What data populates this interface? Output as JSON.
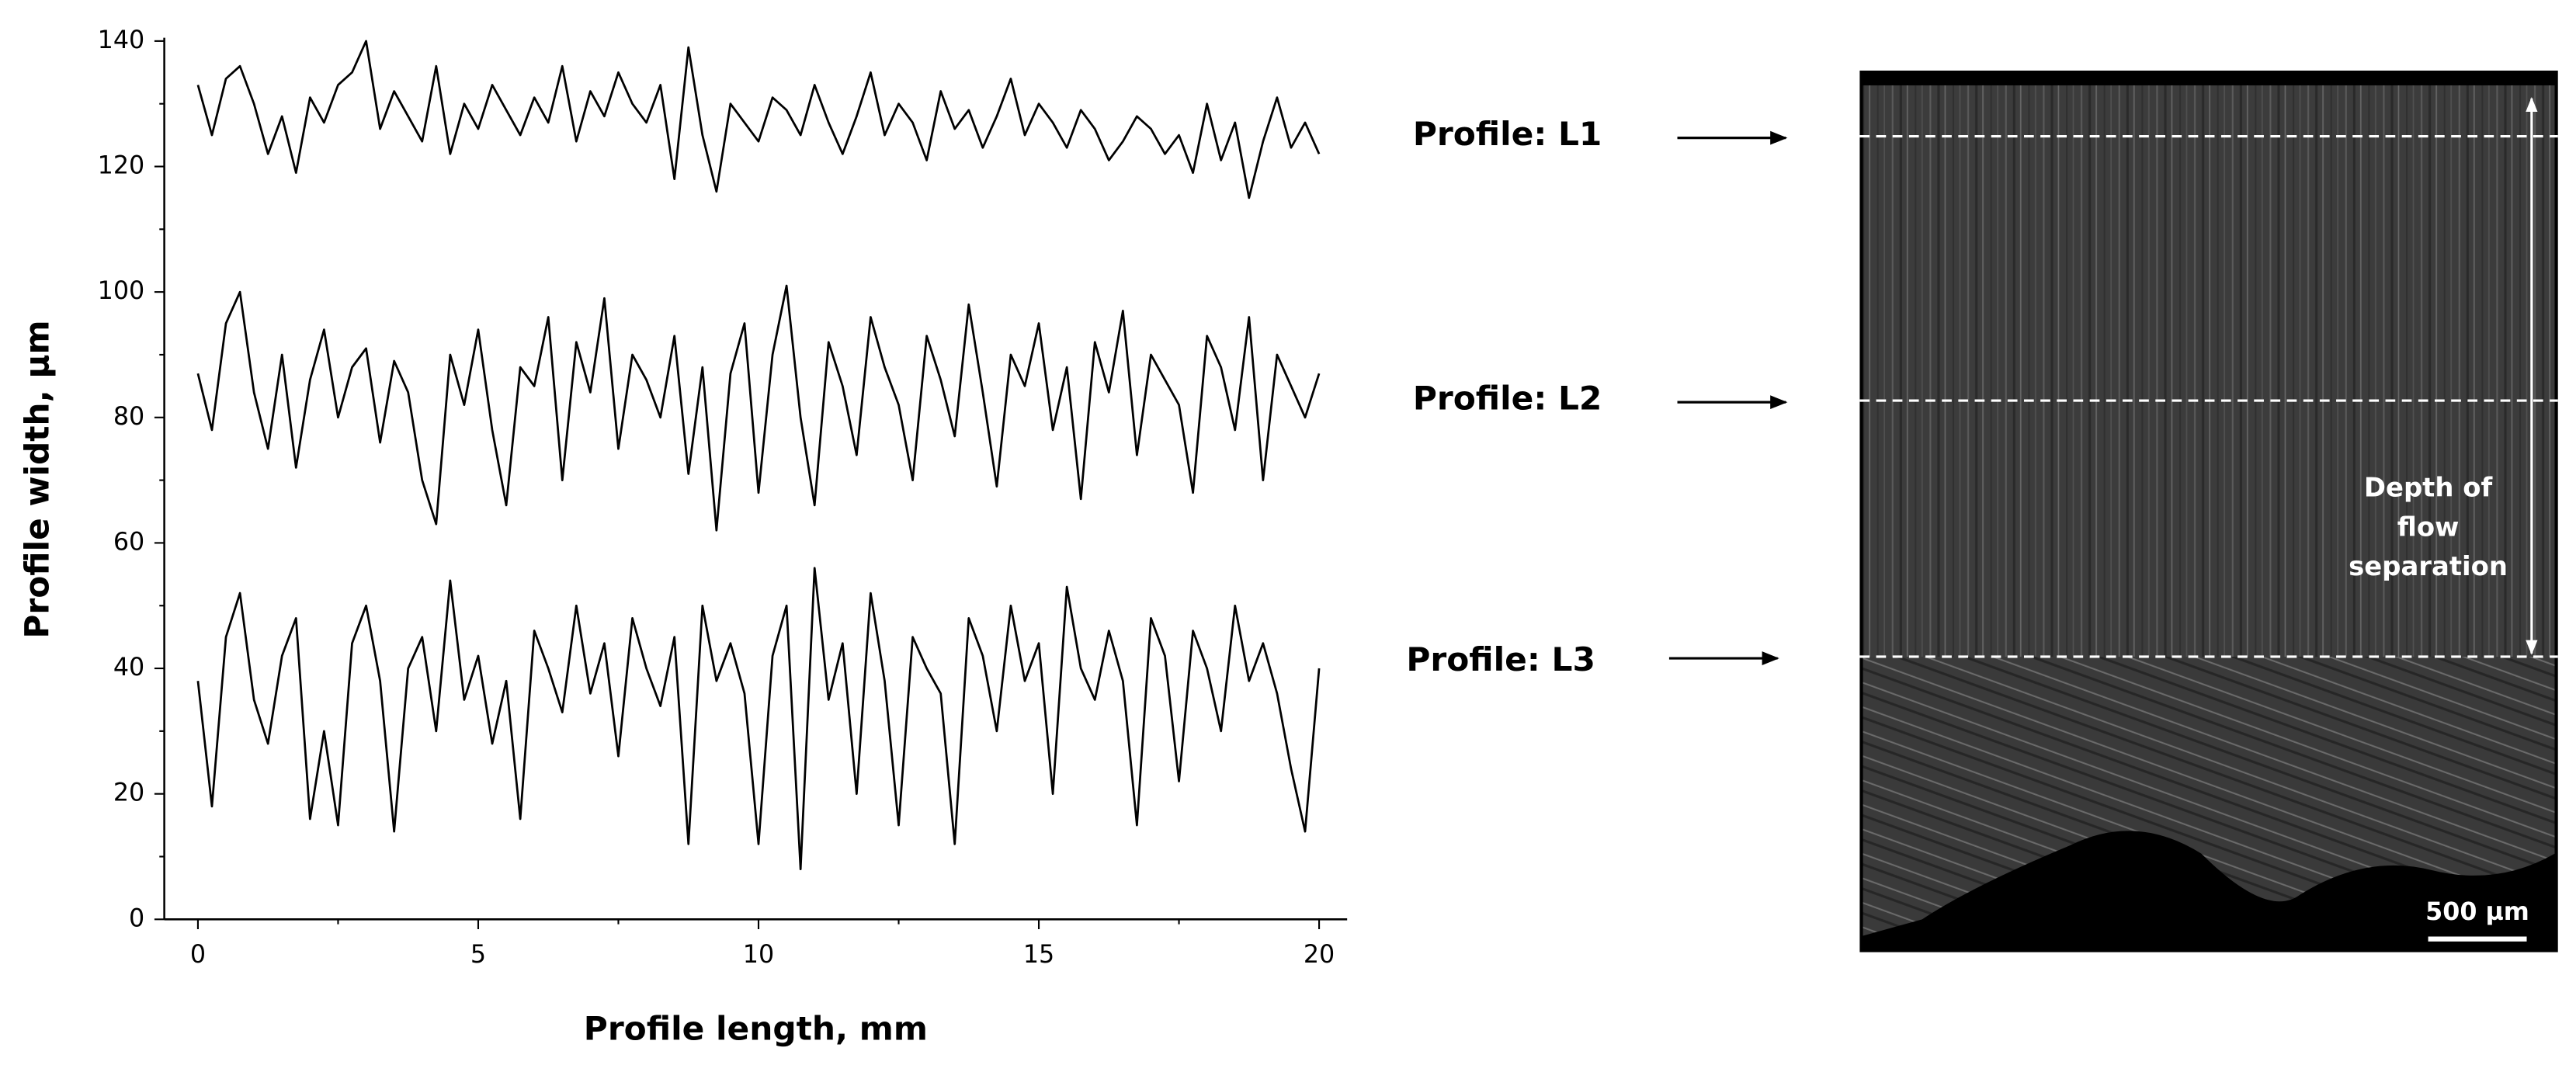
{
  "chart_data": {
    "type": "line",
    "xlabel": "Profile length, mm",
    "ylabel": "Profile width, µm",
    "x": [
      0,
      0.25,
      0.5,
      0.75,
      1,
      1.25,
      1.5,
      1.75,
      2,
      2.25,
      2.5,
      2.75,
      3,
      3.25,
      3.5,
      3.75,
      4,
      4.25,
      4.5,
      4.75,
      5,
      5.25,
      5.5,
      5.75,
      6,
      6.25,
      6.5,
      6.75,
      7,
      7.25,
      7.5,
      7.75,
      8,
      8.25,
      8.5,
      8.75,
      9,
      9.25,
      9.5,
      9.75,
      10,
      10.25,
      10.5,
      10.75,
      11,
      11.25,
      11.5,
      11.75,
      12,
      12.25,
      12.5,
      12.75,
      13,
      13.25,
      13.5,
      13.75,
      14,
      14.25,
      14.5,
      14.75,
      15,
      15.25,
      15.5,
      15.75,
      16,
      16.25,
      16.5,
      16.75,
      17,
      17.25,
      17.5,
      17.75,
      18,
      18.25,
      18.5,
      18.75,
      19,
      19.25,
      19.5,
      19.75,
      20
    ],
    "series": [
      {
        "color": "#000000",
        "values": [
          133,
          125,
          134,
          136,
          130,
          122,
          128,
          119,
          131,
          127,
          133,
          135,
          140,
          126,
          132,
          128,
          124,
          136,
          122,
          130,
          126,
          133,
          129,
          125,
          131,
          127,
          136,
          124,
          132,
          128,
          135,
          130,
          127,
          133,
          118,
          139,
          125,
          116,
          130,
          127,
          124,
          131,
          129,
          125,
          133,
          127,
          122,
          128,
          135,
          125,
          130,
          127,
          121,
          132,
          126,
          129,
          123,
          128,
          134,
          125,
          130,
          127,
          123,
          129,
          126,
          121,
          124,
          128,
          126,
          122,
          125,
          119,
          130,
          121,
          127,
          115,
          124,
          131,
          123,
          127,
          122
        ]
      },
      {
        "color": "#000000",
        "values": [
          87,
          78,
          95,
          100,
          84,
          75,
          90,
          72,
          86,
          94,
          80,
          88,
          91,
          76,
          89,
          84,
          70,
          63,
          90,
          82,
          94,
          78,
          66,
          88,
          85,
          96,
          70,
          92,
          84,
          99,
          75,
          90,
          86,
          80,
          93,
          71,
          88,
          62,
          87,
          95,
          68,
          90,
          101,
          80,
          66,
          92,
          85,
          74,
          96,
          88,
          82,
          70,
          93,
          86,
          77,
          98,
          84,
          69,
          90,
          85,
          95,
          78,
          88,
          67,
          92,
          84,
          97,
          74,
          90,
          86,
          82,
          68,
          93,
          88,
          78,
          96,
          70,
          90,
          85,
          80,
          87
        ]
      },
      {
        "color": "#000000",
        "values": [
          38,
          18,
          45,
          52,
          35,
          28,
          42,
          48,
          16,
          30,
          15,
          44,
          50,
          38,
          14,
          40,
          45,
          30,
          54,
          35,
          42,
          28,
          38,
          16,
          46,
          40,
          33,
          50,
          36,
          44,
          26,
          48,
          40,
          34,
          45,
          12,
          50,
          38,
          44,
          36,
          12,
          42,
          50,
          8,
          56,
          35,
          44,
          20,
          52,
          38,
          15,
          45,
          40,
          36,
          12,
          48,
          42,
          30,
          50,
          38,
          44,
          20,
          53,
          40,
          35,
          46,
          38,
          15,
          48,
          42,
          22,
          46,
          40,
          30,
          50,
          38,
          44,
          36,
          24,
          14,
          40
        ]
      }
    ],
    "xlim": [
      -0.6,
      20.5
    ],
    "xticks": [
      0,
      5,
      10,
      15,
      20
    ],
    "xminor": [
      2.5,
      7.5,
      12.5,
      17.5
    ],
    "ylim": [
      0,
      140
    ],
    "yticks": [
      0,
      20,
      40,
      60,
      80,
      100,
      120,
      140
    ],
    "yminor": [
      10,
      30,
      50,
      70,
      90,
      110,
      130
    ],
    "annotations": [
      "Profile: L1",
      "Profile: L2",
      "Profile: L3"
    ],
    "depth_label": [
      "Depth of",
      "flow",
      "separation"
    ],
    "scale_bar": "500 µm"
  }
}
